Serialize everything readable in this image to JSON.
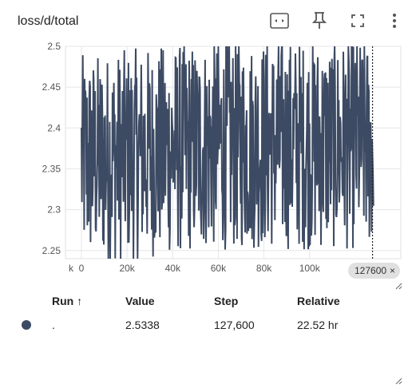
{
  "card": {
    "title": "loss/d/total"
  },
  "toolbar": {
    "fit_icon": "fit-domain-icon",
    "pin_icon": "pin-icon",
    "fullscreen_icon": "fullscreen-icon",
    "more_icon": "more-vert-icon"
  },
  "step_chip": {
    "label": "127600",
    "close": "×"
  },
  "chart_data": {
    "type": "line",
    "title": "loss/d/total",
    "xlabel": "",
    "ylabel": "",
    "x_tick_labels": [
      "k",
      "0",
      "20k",
      "40k",
      "60k",
      "80k",
      "100k"
    ],
    "y_tick_labels": [
      "2.25",
      "2.3",
      "2.35",
      "2.4",
      "2.45",
      "2.5"
    ],
    "xlim": [
      -7000,
      140000
    ],
    "ylim": [
      2.24,
      2.5
    ],
    "grid": true,
    "series_color": "#3c4a63",
    "marker_step": 127600,
    "series": [
      {
        "x": [],
        "y": []
      }
    ]
  },
  "table": {
    "headers": {
      "run": "Run ↑",
      "value": "Value",
      "step": "Step",
      "relative": "Relative"
    },
    "rows": [
      {
        "run": ".",
        "value": "2.5338",
        "step": "127,600",
        "relative": "22.52 hr",
        "color": "#3c4a63"
      }
    ]
  }
}
